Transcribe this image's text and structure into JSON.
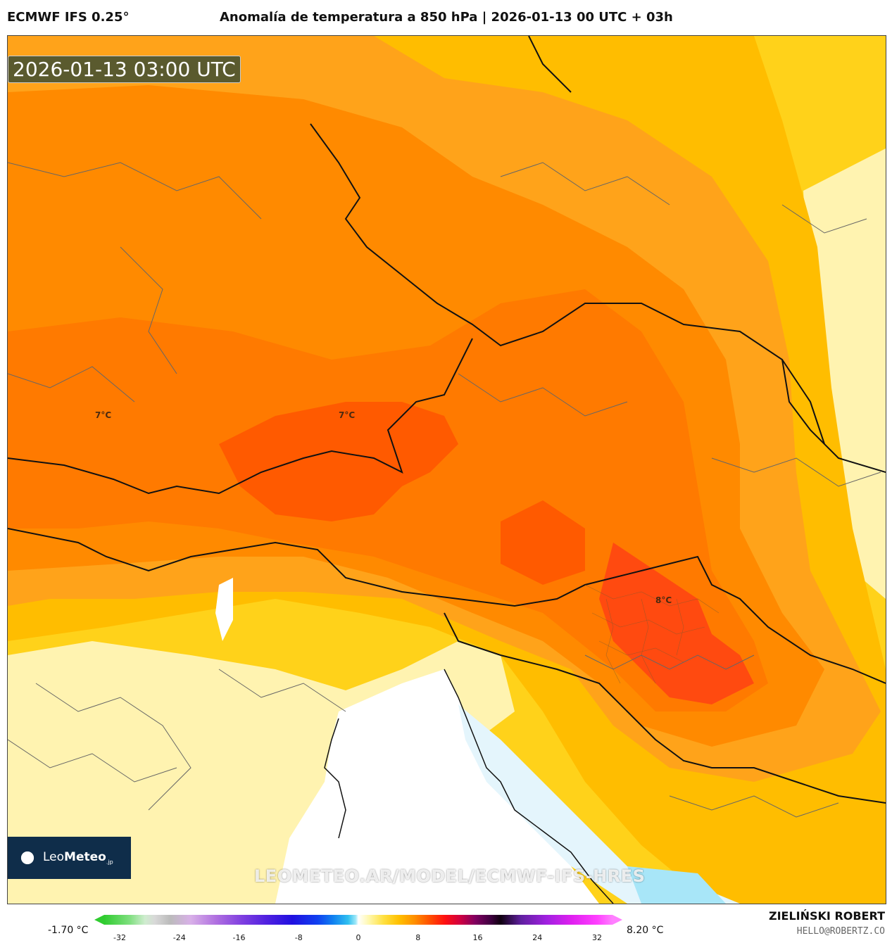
{
  "header": {
    "model": "ECMWF IFS 0.25°",
    "title": "Anomalía de temperatura a 850 hPa | 2026-01-13 00 UTC + 03h"
  },
  "map": {
    "timestamp": "2026-01-13 03:00 UTC",
    "watermark": "LEOMETEO.AR/MODEL/ECMWF-IFS-HRES",
    "contour_labels": [
      "7°C",
      "7°C",
      "8°C"
    ],
    "palette": {
      "pale_yellow": "#fff3b0",
      "yellow": "#ffd21a",
      "gold": "#ffbd00",
      "light_orange": "#ffa31a",
      "orange": "#ff8a00",
      "dark_orange": "#ff6a00",
      "red_orange": "#ff4a10",
      "sea_white": "#ffffff",
      "cold_blue": "#a8e6f8",
      "border": "#111111",
      "region_border": "#666666"
    }
  },
  "logo": {
    "brand_light": "Leo",
    "brand_bold": "Meteo",
    "suffix": ".jp"
  },
  "colorbar": {
    "min_label": "-1.70 °C",
    "max_label": "8.20 °C",
    "ticks": [
      "-32",
      "-24",
      "-16",
      "-8",
      "0",
      "8",
      "16",
      "24",
      "32"
    ]
  },
  "credits": {
    "author": "ZIELIŃSKI ROBERT",
    "email": "HELLO@ROBERTZ.CO"
  }
}
